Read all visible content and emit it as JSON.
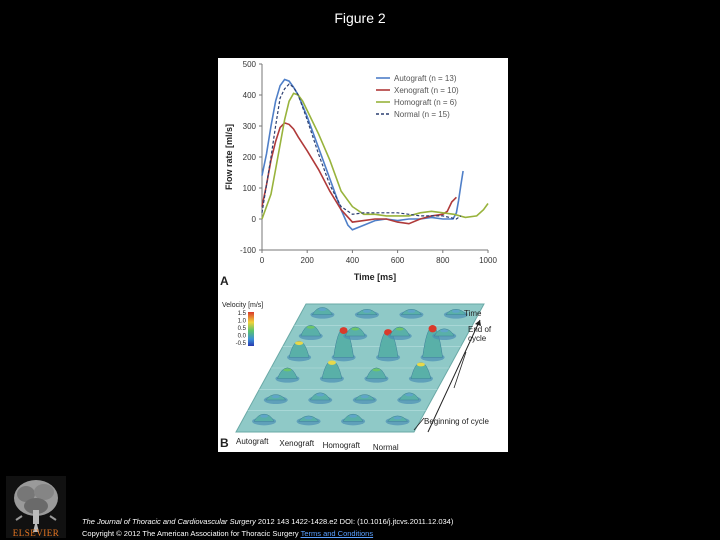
{
  "page": {
    "title": "Figure 2",
    "publisher": "ELSEVIER",
    "citation_journal": "The Journal of Thoracic and Cardiovascular Surgery",
    "citation_rest": " 2012 143 1422-1428.e2 DOI: (10.1016/j.jtcvs.2011.12.034)",
    "copyright": "Copyright © 2012 The American Association for Thoracic Surgery",
    "terms_link": "Terms and Conditions"
  },
  "panel_a_label": "A",
  "panel_b_label": "B",
  "chart_data": {
    "type": "line",
    "xlabel": "Time [ms]",
    "ylabel": "Flow rate [ml/s]",
    "xlim": [
      0,
      1000
    ],
    "ylim": [
      -100,
      500
    ],
    "xticks": [
      "0",
      "200",
      "400",
      "600",
      "800",
      "1000"
    ],
    "yticks": [
      "500",
      "400",
      "300",
      "200",
      "100",
      "0",
      "-100"
    ],
    "grid": false,
    "legend_position": "top-right",
    "series": [
      {
        "name": "Autograft (n = 13)",
        "color": "#4f7fc8",
        "dash": false,
        "x": [
          0,
          20,
          40,
          60,
          80,
          100,
          120,
          140,
          160,
          200,
          250,
          300,
          350,
          380,
          400,
          450,
          500,
          550,
          600,
          650,
          700,
          750,
          800,
          830,
          845,
          860,
          870,
          880,
          890
        ],
        "y": [
          140,
          210,
          300,
          380,
          430,
          450,
          445,
          425,
          400,
          330,
          230,
          130,
          30,
          -20,
          -35,
          -20,
          -5,
          0,
          -5,
          0,
          0,
          5,
          0,
          0,
          0,
          20,
          60,
          110,
          155
        ]
      },
      {
        "name": "Xenograft (n = 10)",
        "color": "#b03a3a",
        "dash": false,
        "x": [
          0,
          20,
          40,
          60,
          80,
          100,
          120,
          140,
          160,
          200,
          250,
          300,
          350,
          400,
          450,
          500,
          550,
          600,
          650,
          700,
          750,
          800,
          820,
          840,
          860
        ],
        "y": [
          40,
          110,
          190,
          250,
          295,
          310,
          305,
          290,
          265,
          220,
          160,
          90,
          30,
          -10,
          -5,
          0,
          0,
          -10,
          -15,
          0,
          10,
          15,
          25,
          55,
          70
        ]
      },
      {
        "name": "Homograft (n = 6)",
        "color": "#98b33c",
        "dash": false,
        "x": [
          0,
          40,
          60,
          80,
          100,
          120,
          140,
          160,
          180,
          200,
          250,
          300,
          350,
          400,
          450,
          500,
          550,
          600,
          650,
          700,
          750,
          800,
          850,
          900,
          950,
          980,
          1000
        ],
        "y": [
          0,
          80,
          160,
          240,
          320,
          380,
          405,
          400,
          380,
          350,
          275,
          190,
          90,
          40,
          15,
          15,
          10,
          10,
          10,
          20,
          25,
          20,
          15,
          5,
          10,
          30,
          50
        ]
      },
      {
        "name": "Normal (n = 15)",
        "color": "#2c3e70",
        "dash": true,
        "x": [
          0,
          40,
          60,
          80,
          100,
          120,
          140,
          160,
          200,
          250,
          300,
          350,
          400,
          450,
          500,
          550,
          600,
          650,
          700,
          750,
          800,
          830,
          860,
          870,
          880
        ],
        "y": [
          20,
          200,
          300,
          390,
          420,
          435,
          425,
          400,
          320,
          210,
          110,
          40,
          15,
          20,
          20,
          20,
          20,
          15,
          10,
          10,
          10,
          5,
          0,
          5,
          10
        ]
      }
    ]
  },
  "velocity_panel": {
    "colorbar_title": "Velocity [m/s]",
    "colorbar_ticks": [
      "1.5",
      "1.0",
      "0.5",
      "0.0",
      "-0.5"
    ],
    "columns": [
      "Autograft",
      "Xenograft",
      "Homograft",
      "Normal"
    ],
    "time_label": "Time",
    "end_label_1": "End of",
    "end_label_2": "cycle",
    "begin_label": "Beginning of cycle",
    "peaks": [
      [
        0.4,
        0.3,
        0.4,
        0.3
      ],
      [
        0.3,
        0.4,
        0.3,
        0.4
      ],
      [
        0.6,
        1.0,
        0.6,
        0.9
      ],
      [
        0.9,
        1.6,
        1.5,
        1.7
      ],
      [
        0.6,
        0.5,
        0.5,
        0.4
      ],
      [
        0.4,
        0.3,
        0.3,
        0.3
      ]
    ]
  }
}
